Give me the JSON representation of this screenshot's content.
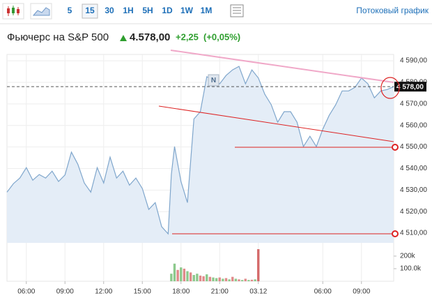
{
  "toolbar": {
    "intervals": [
      "5",
      "15",
      "30",
      "1H",
      "5H",
      "1D",
      "1W",
      "1M"
    ],
    "active": "15",
    "streaming_link": "Потоковый график"
  },
  "header": {
    "title": "Фьючерс на S&P 500",
    "price": "4.578,00",
    "change": "+2,25",
    "change_pct": "(+0,05%)"
  },
  "chart_data": {
    "type": "area",
    "color": "#7fa6cc",
    "fill": "#e4edf7",
    "grid": true,
    "x": [
      4.5,
      5,
      5.5,
      6,
      6.5,
      7,
      7.5,
      8,
      8.5,
      9,
      9.5,
      10,
      10.5,
      11,
      11.5,
      12,
      12.5,
      13,
      13.5,
      14,
      14.5,
      15,
      15.5,
      16,
      16.5,
      17,
      17.25,
      17.5,
      18,
      18.5,
      19,
      19.5,
      20,
      20.5,
      21,
      21.5,
      22,
      22.5,
      23,
      23.5,
      24,
      24.5,
      25,
      25.5,
      26,
      26.5,
      27,
      27.5,
      28,
      28.5,
      29,
      29.5,
      30,
      30.5,
      31,
      31.5,
      32,
      32.5,
      33,
      33.5,
      34,
      34.5
    ],
    "values": [
      4529,
      4533,
      4535.6,
      4540.4,
      4534.6,
      4537.2,
      4535.6,
      4538.8,
      4534,
      4537,
      4547.6,
      4542,
      4533.3,
      4529,
      4540.4,
      4533.3,
      4545.3,
      4535.6,
      4538.8,
      4532.3,
      4535.6,
      4530.7,
      4521,
      4524.2,
      4513,
      4509.7,
      4537.2,
      4550.2,
      4533.9,
      4524.2,
      4563,
      4566.4,
      4582.6,
      4581,
      4579.3,
      4583.2,
      4585.8,
      4587.4,
      4579.3,
      4585.8,
      4582,
      4574.5,
      4569.6,
      4561.5,
      4566.4,
      4566.4,
      4561.5,
      4550.2,
      4555,
      4550.2,
      4558.3,
      4564.7,
      4569.6,
      4576,
      4576,
      4577.7,
      4582,
      4579.3,
      4572.8,
      4576,
      4576.7,
      4578
    ],
    "xlim": [
      4.5,
      34.5
    ],
    "xticks": [
      {
        "value": 6,
        "label": "06:00"
      },
      {
        "value": 9,
        "label": "09:00"
      },
      {
        "value": 12,
        "label": "12:00"
      },
      {
        "value": 15,
        "label": "15:00"
      },
      {
        "value": 18,
        "label": "18:00"
      },
      {
        "value": 21,
        "label": "21:00"
      },
      {
        "value": 24,
        "label": "03.12"
      },
      {
        "value": 29,
        "label": "06:00"
      },
      {
        "value": 32,
        "label": "09:00"
      }
    ],
    "ylim": [
      4505.5,
      4592.3
    ],
    "yticks": [
      {
        "value": 4510,
        "label": "4 510,00"
      },
      {
        "value": 4520,
        "label": "4 520,00"
      },
      {
        "value": 4530,
        "label": "4 530,00"
      },
      {
        "value": 4540,
        "label": "4 540,00"
      },
      {
        "value": 4550,
        "label": "4 550,00"
      },
      {
        "value": 4560,
        "label": "4 560,00"
      },
      {
        "value": 4570,
        "label": "4 570,00"
      },
      {
        "value": 4580,
        "label": "4 580,00"
      },
      {
        "value": 4590,
        "label": "4 590,00"
      }
    ],
    "last_price": {
      "value": 4578,
      "label": "4 578,00"
    },
    "news_marker": {
      "x": 20.5,
      "label": "N"
    },
    "watermark": [
      "Investing",
      ".com"
    ],
    "volume": {
      "x": [
        17.25,
        17.5,
        17.75,
        18,
        18.25,
        18.5,
        18.75,
        19,
        19.25,
        19.5,
        19.75,
        20,
        20.25,
        20.5,
        20.75,
        21,
        21.25,
        21.5,
        21.75,
        22,
        22.25,
        22.5,
        22.75,
        23,
        23.25,
        23.5,
        23.75,
        24
      ],
      "values": [
        60000,
        140000,
        90000,
        110000,
        100000,
        80000,
        70000,
        50000,
        60000,
        45000,
        40000,
        55000,
        35000,
        30000,
        25000,
        30000,
        20000,
        25000,
        15000,
        35000,
        20000,
        15000,
        10000,
        20000,
        10000,
        12000,
        15000,
        255000
      ],
      "colors": [
        "#8cc98c",
        "#8cc98c",
        "#e08a8a",
        "#8cc98c",
        "#e08a8a",
        "#8cc98c",
        "#e08a8a",
        "#8cc98c",
        "#8cc98c",
        "#e08a8a",
        "#e08a8a",
        "#8cc98c",
        "#e08a8a",
        "#8cc98c",
        "#8cc98c",
        "#e08a8a",
        "#8cc98c",
        "#e08a8a",
        "#8cc98c",
        "#e08a8a",
        "#8cc98c",
        "#e08a8a",
        "#8cc98c",
        "#e08a8a",
        "#8cc98c",
        "#e08a8a",
        "#8cc98c",
        "#d46a6a"
      ],
      "ylim": [
        0,
        294000
      ],
      "yticks": [
        {
          "value": 100000,
          "label": "100.0k"
        },
        {
          "value": 200000,
          "label": "200k"
        }
      ]
    }
  }
}
